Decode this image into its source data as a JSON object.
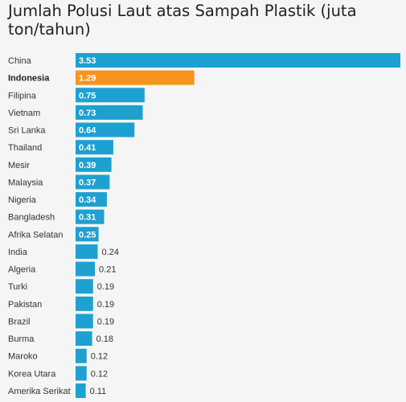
{
  "chart_data": {
    "type": "bar",
    "orientation": "horizontal",
    "title": "Jumlah Polusi Laut atas Sampah Plastik (juta ton/tahun)",
    "xlabel": "",
    "ylabel": "",
    "xlim": [
      0,
      3.53
    ],
    "grid": false,
    "legend": "none",
    "highlight_category": "Indonesia",
    "colors": {
      "default": "#1da1d0",
      "highlight": "#f7941d"
    },
    "categories": [
      "China",
      "Indonesia",
      "Filipina",
      "Vietnam",
      "Sri Lanka",
      "Thailand",
      "Mesir",
      "Malaysia",
      "Nigeria",
      "Bangladesh",
      "Afrika Selatan",
      "India",
      "Algeria",
      "Turki",
      "Pakistan",
      "Brazil",
      "Burma",
      "Maroko",
      "Korea Utara",
      "Amerika Serikat"
    ],
    "values": [
      3.53,
      1.29,
      0.75,
      0.73,
      0.64,
      0.41,
      0.39,
      0.37,
      0.34,
      0.31,
      0.25,
      0.24,
      0.21,
      0.19,
      0.19,
      0.19,
      0.18,
      0.12,
      0.12,
      0.11
    ],
    "value_labels": [
      "3.53",
      "1.29",
      "0.75",
      "0.73",
      "0.64",
      "0.41",
      "0.39",
      "0.37",
      "0.34",
      "0.31",
      "0.25",
      "0.24",
      "0.21",
      "0.19",
      "0.19",
      "0.19",
      "0.18",
      "0.12",
      "0.12",
      "0.11"
    ]
  }
}
